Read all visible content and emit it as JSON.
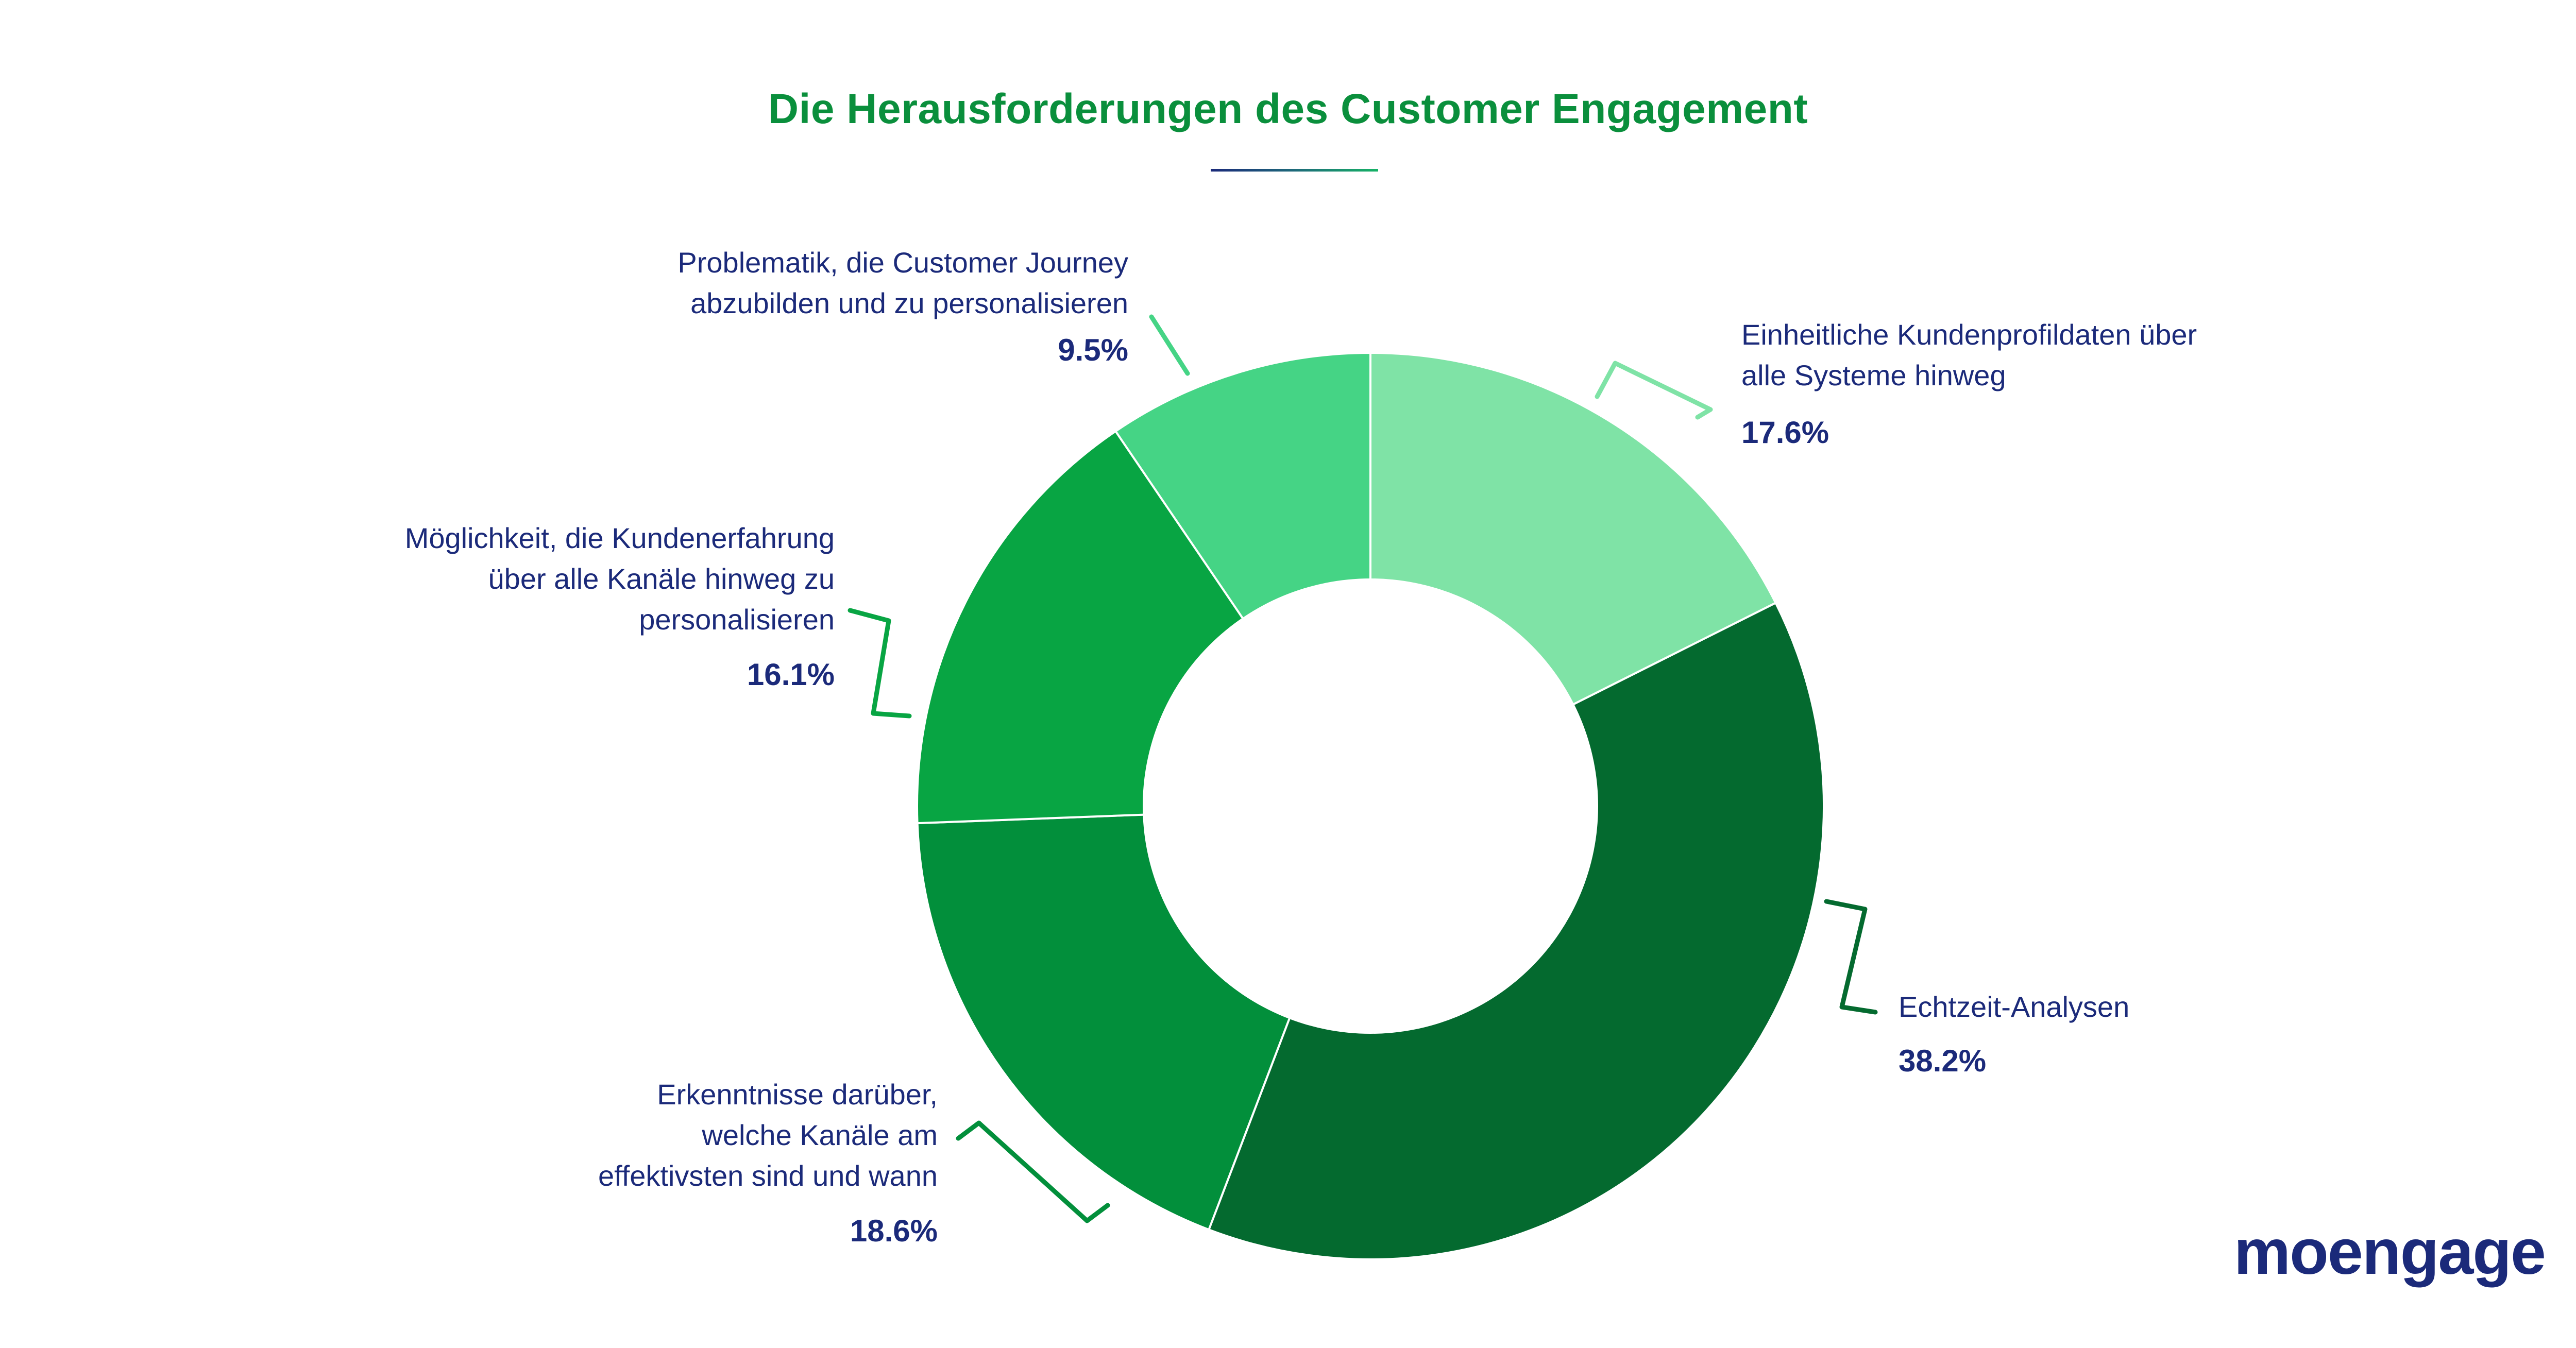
{
  "chart_data": {
    "type": "pie",
    "title": "Die Herausforderungen des Customer Engagement",
    "slices": [
      {
        "label": "Einheitliche Kundenprofildaten über alle Systeme hinweg",
        "value": 17.6,
        "value_label": "17.6%",
        "color": "#7FE3A6"
      },
      {
        "label": "Echtzeit-Analysen",
        "value": 38.2,
        "value_label": "38.2%",
        "color": "#046A2F"
      },
      {
        "label": "Erkenntnisse darüber, welche Kanäle am effektivsten sind und wann",
        "value": 18.6,
        "value_label": "18.6%",
        "color": "#028F3B"
      },
      {
        "label": "Möglichkeit, die Kundenerfahrung über alle Kanäle hinweg zu personalisieren",
        "value": 16.1,
        "value_label": "16.1%",
        "color": "#08A543"
      },
      {
        "label": "Problematik, die Customer Journey abzubilden und zu personalisieren",
        "value": 9.5,
        "value_label": "9.5%",
        "color": "#45D485"
      }
    ],
    "label_lines": [
      [
        "Einheitliche Kundenprofildaten über",
        "alle Systeme hinweg"
      ],
      [
        "Echtzeit-Analysen"
      ],
      [
        "Erkenntnisse darüber,",
        "welche Kanäle am",
        "effektivsten sind und wann"
      ],
      [
        "Möglichkeit, die Kundenerfahrung",
        "über alle Kanäle hinweg zu",
        "personalisieren"
      ],
      [
        "Problematik, die Customer Journey",
        "abzubilden und zu personalisieren"
      ]
    ]
  },
  "brand": {
    "logo_text": "moengage",
    "text_color": "#1B2A7A"
  }
}
